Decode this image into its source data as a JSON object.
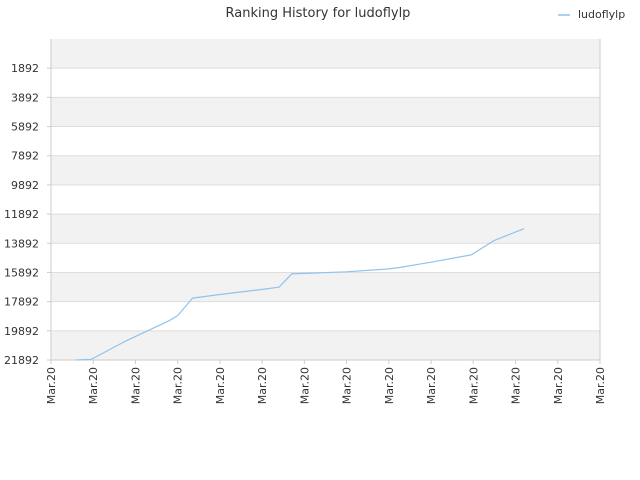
{
  "chart_data": {
    "type": "line",
    "title": "Ranking History for ludoflylp",
    "xlabel": "",
    "ylabel": "",
    "y_inverted": true,
    "ylim": [
      -108,
      21892
    ],
    "y_ticks": [
      "1892",
      "3892",
      "5892",
      "7892",
      "9892",
      "11892",
      "13892",
      "15892",
      "17892",
      "19892",
      "21892"
    ],
    "x_ticks": [
      "Mar.20",
      "Mar.20",
      "Mar.20",
      "Mar.20",
      "Mar.20",
      "Mar.20",
      "Mar.20",
      "Mar.20",
      "Mar.20",
      "Mar.20",
      "Mar.20",
      "Mar.20",
      "Mar.20",
      "Mar.20"
    ],
    "grid": true,
    "legend_position": "top-right",
    "colors": {
      "series": "#90c3ee",
      "band_shaded": "#f2f2f2",
      "band_plain": "#ffffff",
      "gridline": "#dddddd",
      "axis": "#cccccc"
    },
    "series": [
      {
        "name": "ludoflylp",
        "x": [
          0.6,
          0.95,
          1.8,
          2.8,
          3.0,
          3.35,
          4.0,
          5.0,
          5.4,
          5.7,
          7.0,
          8.0,
          8.25,
          9.0,
          9.95,
          10.5,
          11.2
        ],
        "y": [
          21892,
          21850,
          20550,
          19200,
          18850,
          17650,
          17400,
          17050,
          16900,
          15992,
          15850,
          15650,
          15550,
          15192,
          14692,
          13692,
          12892
        ]
      }
    ]
  }
}
